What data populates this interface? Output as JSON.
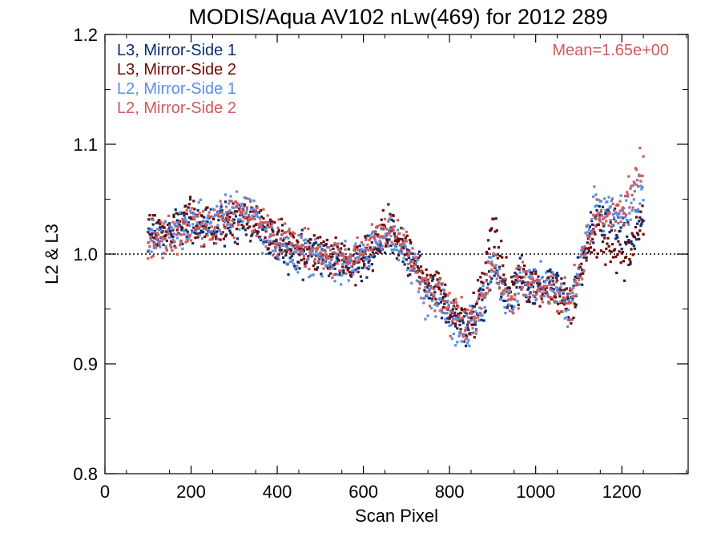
{
  "chart_data": {
    "type": "scatter",
    "title": "MODIS/Aqua AV102 nLw(469) for 2012 289",
    "xlabel": "Scan Pixel",
    "ylabel": "L2 & L3",
    "xlim": [
      0,
      1354
    ],
    "ylim": [
      0.8,
      1.2
    ],
    "xticks": [
      0,
      200,
      400,
      600,
      800,
      1000,
      1200
    ],
    "xtick_labels": [
      "0",
      "200",
      "400",
      "600",
      "800",
      "1000",
      "1200"
    ],
    "yticks": [
      0.8,
      0.9,
      1.0,
      1.1,
      1.2
    ],
    "ytick_labels": [
      "0.8",
      "0.9",
      "1.0",
      "1.1",
      "1.2"
    ],
    "reference_line": 1.0,
    "annotation": "Mean=1.65e+00",
    "annotation_color": "#d05a5a",
    "legend_position": "top-left",
    "x_start": 100,
    "x_end": 1250,
    "profile_x": [
      100,
      150,
      200,
      250,
      300,
      340,
      380,
      420,
      460,
      500,
      540,
      580,
      620,
      660,
      700,
      740,
      780,
      800,
      820,
      840,
      860,
      880,
      900,
      920,
      940,
      960,
      980,
      1000,
      1020,
      1040,
      1060,
      1080,
      1100,
      1120,
      1140,
      1160,
      1180,
      1200,
      1220,
      1240,
      1250
    ],
    "series": [
      {
        "name": "L3, Mirror-Side 1",
        "color": "#0b2e6a",
        "profile": [
          1.02,
          1.02,
          1.03,
          1.025,
          1.03,
          1.03,
          1.01,
          1.005,
          1.0,
          0.995,
          0.995,
          0.99,
          1.0,
          1.02,
          1.0,
          0.97,
          0.96,
          0.945,
          0.935,
          0.93,
          0.945,
          0.96,
          0.99,
          0.975,
          0.96,
          0.98,
          0.97,
          0.975,
          0.97,
          0.975,
          0.965,
          0.955,
          0.98,
          1.01,
          1.035,
          1.03,
          1.025,
          1.02,
          1.01,
          1.03,
          1.03
        ]
      },
      {
        "name": "L3, Mirror-Side 2",
        "color": "#6e0a0a",
        "profile": [
          1.025,
          1.02,
          1.035,
          1.02,
          1.035,
          1.03,
          1.02,
          1.01,
          1.0,
          1.0,
          0.995,
          0.99,
          1.005,
          1.025,
          1.005,
          0.98,
          0.965,
          0.95,
          0.94,
          0.935,
          0.95,
          0.98,
          1.03,
          0.99,
          0.965,
          0.975,
          0.97,
          0.97,
          0.965,
          0.97,
          0.96,
          0.95,
          0.975,
          1.0,
          1.02,
          1.01,
          1.005,
          1.0,
          1.0,
          1.03,
          1.035
        ]
      },
      {
        "name": "L2, Mirror-Side 1",
        "color": "#5b8fe3",
        "profile": [
          1.015,
          1.015,
          1.03,
          1.03,
          1.04,
          1.035,
          1.015,
          1.005,
          1.0,
          0.995,
          0.99,
          0.99,
          1.005,
          1.02,
          1.0,
          0.965,
          0.955,
          0.945,
          0.93,
          0.93,
          0.945,
          0.96,
          0.995,
          0.965,
          0.955,
          0.97,
          0.975,
          0.97,
          0.975,
          0.97,
          0.96,
          0.95,
          0.985,
          1.02,
          1.045,
          1.04,
          1.04,
          1.035,
          1.045,
          1.06,
          1.06
        ]
      },
      {
        "name": "L2, Mirror-Side 2",
        "color": "#d05a5a",
        "profile": [
          1.01,
          1.015,
          1.025,
          1.025,
          1.035,
          1.04,
          1.02,
          1.01,
          1.005,
          1.0,
          0.995,
          0.995,
          1.01,
          1.025,
          1.01,
          0.975,
          0.96,
          0.95,
          0.94,
          0.935,
          0.945,
          0.965,
          0.995,
          0.97,
          0.96,
          0.97,
          0.97,
          0.97,
          0.97,
          0.97,
          0.96,
          0.955,
          0.98,
          1.015,
          1.035,
          1.035,
          1.035,
          1.035,
          1.05,
          1.08,
          1.08
        ]
      }
    ]
  }
}
